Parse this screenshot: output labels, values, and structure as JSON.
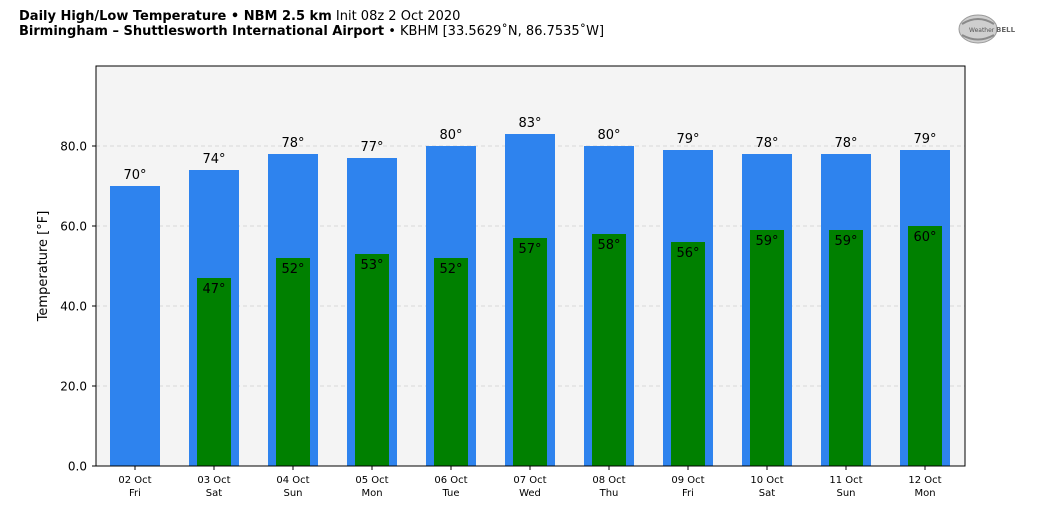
{
  "header": {
    "title_bold": "Daily High/Low Temperature • NBM 2.5 km",
    "title_init": "Init 08z 2 Oct 2020",
    "location_bold": "Birmingham – Shuttlesworth International Airport",
    "location_detail": "• KBHM [33.5629˚N, 86.7535˚W]"
  },
  "logo": {
    "text_left": "Weather",
    "text_right": "BELL"
  },
  "colors": {
    "high": "#2e83ee",
    "low": "#008000",
    "plot_bg": "#f4f4f4"
  },
  "chart_data": {
    "type": "bar",
    "ylabel": "Temperature [°F]",
    "ylim": [
      0,
      100
    ],
    "yticks": [
      0,
      20,
      40,
      60,
      80
    ],
    "ytick_labels": [
      "0.0",
      "20.0",
      "40.0",
      "60.0",
      "80.0"
    ],
    "grid": "horizontal dashed",
    "categories": [
      "02 Oct",
      "03 Oct",
      "04 Oct",
      "05 Oct",
      "06 Oct",
      "07 Oct",
      "08 Oct",
      "09 Oct",
      "10 Oct",
      "11 Oct",
      "12 Oct"
    ],
    "weekdays": [
      "Fri",
      "Sat",
      "Sun",
      "Mon",
      "Tue",
      "Wed",
      "Thu",
      "Fri",
      "Sat",
      "Sun",
      "Mon"
    ],
    "series": [
      {
        "key": "high",
        "values": [
          70,
          74,
          78,
          77,
          80,
          83,
          80,
          79,
          78,
          78,
          79
        ],
        "labels": [
          "70°",
          "74°",
          "78°",
          "77°",
          "80°",
          "83°",
          "80°",
          "79°",
          "78°",
          "78°",
          "79°"
        ]
      },
      {
        "key": "low",
        "values": [
          null,
          47,
          52,
          53,
          52,
          57,
          58,
          56,
          59,
          59,
          60
        ],
        "labels": [
          "",
          "47°",
          "52°",
          "53°",
          "52°",
          "57°",
          "58°",
          "56°",
          "59°",
          "59°",
          "60°"
        ]
      }
    ]
  }
}
